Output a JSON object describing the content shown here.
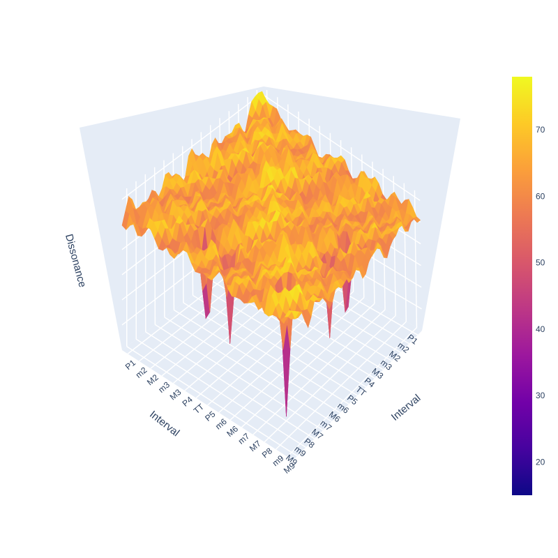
{
  "chart_data": {
    "type": "surface",
    "title": "",
    "x_axis": {
      "title": "Interval",
      "tick_labels": [
        "P1",
        "m2",
        "M2",
        "m3",
        "M3",
        "P4",
        "TT",
        "P5",
        "m6",
        "M6",
        "m7",
        "M7",
        "P8",
        "m9",
        "M9"
      ]
    },
    "y_axis": {
      "title": "Interval",
      "tick_labels": [
        "P1",
        "m2",
        "M2",
        "m3",
        "M3",
        "P4",
        "TT",
        "P5",
        "m6",
        "M6",
        "m7",
        "M7",
        "P8",
        "m9",
        "M9"
      ]
    },
    "z_axis": {
      "title": "Dissonance",
      "range": [
        15,
        78
      ]
    },
    "colorbar": {
      "min": 15,
      "max": 78,
      "tick_values": [
        20,
        30,
        40,
        50,
        60,
        70
      ],
      "tick_labels": [
        "20",
        "30",
        "40",
        "50",
        "60",
        "70"
      ],
      "colorscale": [
        "#0d0887",
        "#46039f",
        "#7201a8",
        "#9c179e",
        "#bd3786",
        "#d8576b",
        "#ed7953",
        "#fb9f3a",
        "#fdca26",
        "#f0f921"
      ]
    },
    "surface_summary": {
      "typical_value": 68,
      "peak_value": 78,
      "deepest_values": [
        {
          "x": "P8",
          "y": "P8",
          "z": 15
        },
        {
          "x": "P5",
          "y": "P8",
          "z": 28
        },
        {
          "x": "P8",
          "y": "P5",
          "z": 28
        },
        {
          "x": "P4",
          "y": "P8",
          "z": 30
        },
        {
          "x": "P8",
          "y": "P4",
          "z": 30
        }
      ]
    },
    "grid": true,
    "background_color": "#e5ecf6"
  }
}
